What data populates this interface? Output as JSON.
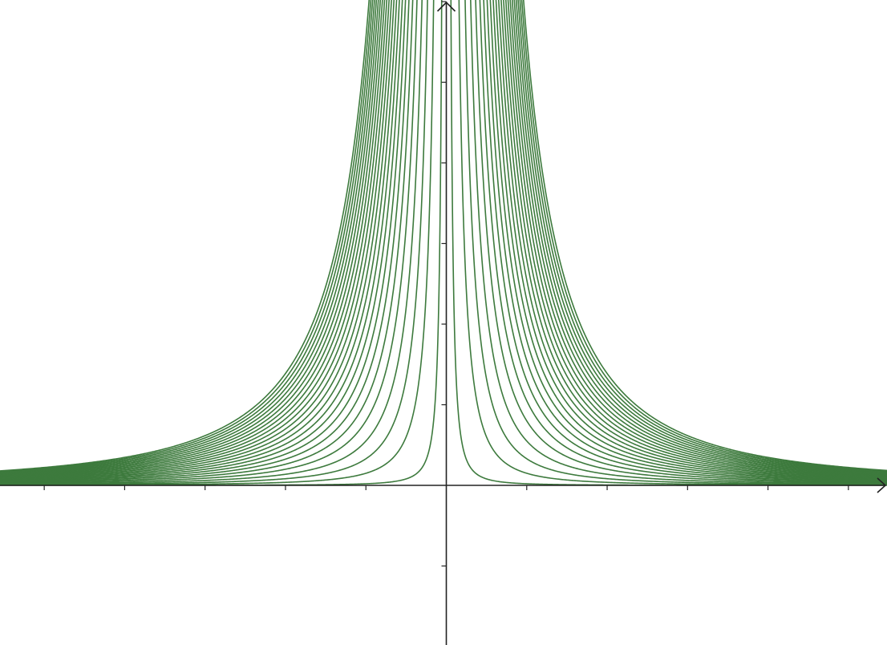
{
  "chart_data": {
    "type": "line",
    "title": "",
    "xlabel": "",
    "ylabel": "",
    "function_family": "y = k / x^2",
    "xlim": [
      -5.55,
      5.48
    ],
    "ylim": [
      -1.98,
      6.02
    ],
    "x_tick_step": 1,
    "y_tick_step": 1,
    "grid": false,
    "legend": "none",
    "curve_color": "#3d7a3d",
    "axis_color": "#222222",
    "k_values": [
      0.02,
      0.15,
      0.33,
      0.55,
      0.8,
      1.05,
      1.3,
      1.55,
      1.8,
      2.05,
      2.3,
      2.55,
      2.8,
      3.05,
      3.3,
      3.55,
      3.8,
      4.05,
      4.3,
      4.55,
      4.8,
      5.05,
      5.3,
      5.55
    ]
  }
}
